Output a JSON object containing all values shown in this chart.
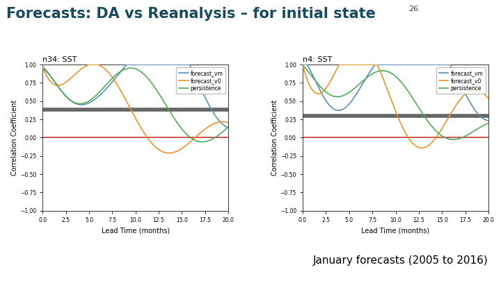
{
  "title": "Forecasts: DA vs Reanalysis – for initial state",
  "title_superscript": "26",
  "subtitle": "January forecasts (2005 to 2016)",
  "title_color": "#1a4a5e",
  "title_fontsize": 15,
  "subtitle_fontsize": 11,
  "plot1_title": "n34: SST",
  "plot2_title": "n4: SST",
  "xlabel": "Lead Time (months)",
  "ylabel": "Correlation Coefficient",
  "xlim": [
    0,
    20
  ],
  "ylim": [
    -1.0,
    1.0
  ],
  "yticks": [
    -1.0,
    -0.75,
    -0.5,
    -0.25,
    0.0,
    0.25,
    0.5,
    0.75,
    1.0
  ],
  "xticks": [
    0.0,
    2.5,
    5.0,
    7.5,
    10.0,
    12.5,
    15.0,
    17.5,
    20.0
  ],
  "hline_gray_y1": 0.38,
  "hline_gray_y2": 0.3,
  "hline_gray_color": "#666666",
  "hline_gray_lw": 4,
  "hline_red_y": 0.0,
  "hline_red_color": "#cc3333",
  "hline_red_lw": 1.2,
  "legend_labels": [
    "forecast_vm",
    "forecast_v0",
    "persistence"
  ],
  "line_colors": [
    "#5b8db8",
    "#e8922a",
    "#4daa57"
  ],
  "line_lw": 1.2,
  "background_color": "#ffffff",
  "lead_time_max": 20.0,
  "n_points": 300
}
